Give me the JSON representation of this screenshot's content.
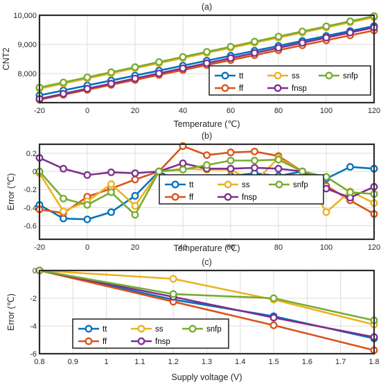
{
  "colors": {
    "tt": "#0072BD",
    "ff": "#D95319",
    "ss": "#EDB120",
    "fnsp": "#7E2F8E",
    "snfp": "#77AC30"
  },
  "legend_order": [
    "tt",
    "ss",
    "snfp",
    "ff",
    "fnsp"
  ],
  "chart_data": [
    {
      "type": "line",
      "title": "(a)",
      "xlabel": "Temperature (℃)",
      "ylabel": "CNT2",
      "xlim": [
        -20,
        120
      ],
      "ylim": [
        7000,
        10000
      ],
      "xticks": [
        -20,
        0,
        20,
        40,
        60,
        80,
        100,
        120
      ],
      "yticks": [
        8000,
        9000,
        10000
      ],
      "ytick_labels": [
        "8,000",
        "9,000",
        "10,000"
      ],
      "grid": true,
      "legend_position": "bottom-right",
      "x": [
        -20,
        -10,
        0,
        10,
        20,
        30,
        40,
        50,
        60,
        70,
        80,
        90,
        100,
        110,
        120
      ],
      "series": [
        {
          "name": "tt",
          "values": [
            7250,
            7420,
            7590,
            7760,
            7930,
            8100,
            8270,
            8440,
            8610,
            8780,
            8950,
            9120,
            9290,
            9460,
            9630
          ]
        },
        {
          "name": "ff",
          "values": [
            7100,
            7270,
            7440,
            7610,
            7780,
            7950,
            8120,
            8290,
            8460,
            8630,
            8800,
            8970,
            9140,
            9310,
            9480
          ]
        },
        {
          "name": "ss",
          "values": [
            7480,
            7655,
            7830,
            8005,
            8180,
            8355,
            8530,
            8705,
            8880,
            9055,
            9230,
            9405,
            9580,
            9755,
            9930
          ]
        },
        {
          "name": "fnsp",
          "values": [
            7130,
            7305,
            7480,
            7655,
            7830,
            8005,
            8180,
            8355,
            8530,
            8705,
            8880,
            9055,
            9230,
            9405,
            9580
          ]
        },
        {
          "name": "snfp",
          "values": [
            7520,
            7695,
            7870,
            8045,
            8220,
            8395,
            8570,
            8745,
            8920,
            9095,
            9270,
            9445,
            9620,
            9795,
            9970
          ]
        }
      ]
    },
    {
      "type": "line",
      "title": "(b)",
      "xlabel": "Temperature (℃)",
      "ylabel": "Error (℃)",
      "xlim": [
        -20,
        120
      ],
      "ylim": [
        -0.75,
        0.3
      ],
      "xticks": [
        -20,
        0,
        20,
        40,
        60,
        80,
        100,
        120
      ],
      "yticks": [
        -0.6,
        -0.4,
        -0.2,
        0,
        0.2
      ],
      "ytick_labels": [
        "-0.6",
        "-0.4",
        "-0.2",
        "0",
        "0.2"
      ],
      "grid": true,
      "legend_position": "bottom-center",
      "x": [
        -20,
        -10,
        0,
        10,
        20,
        30,
        40,
        50,
        60,
        70,
        80,
        90,
        100,
        110,
        120
      ],
      "series": [
        {
          "name": "tt",
          "values": [
            -0.37,
            -0.52,
            -0.53,
            -0.45,
            -0.27,
            0.0,
            -0.14,
            -0.08,
            -0.05,
            -0.02,
            -0.05,
            0.0,
            -0.08,
            0.05,
            0.03
          ]
        },
        {
          "name": "ff",
          "values": [
            -0.42,
            -0.46,
            -0.28,
            -0.19,
            -0.09,
            0.0,
            0.28,
            0.18,
            0.21,
            0.22,
            0.17,
            0.0,
            -0.16,
            -0.32,
            -0.47
          ]
        },
        {
          "name": "ss",
          "values": [
            -0.02,
            -0.44,
            -0.33,
            -0.14,
            -0.38,
            0.0,
            0.03,
            0.02,
            0.02,
            -0.12,
            0.15,
            0.0,
            -0.45,
            -0.22,
            -0.35
          ]
        },
        {
          "name": "fnsp",
          "values": [
            0.15,
            0.03,
            -0.04,
            -0.01,
            -0.02,
            0.0,
            0.09,
            0.03,
            0.03,
            0.04,
            0.03,
            0.0,
            -0.19,
            -0.29,
            -0.17
          ]
        },
        {
          "name": "snfp",
          "values": [
            0.0,
            -0.3,
            -0.37,
            -0.23,
            -0.48,
            0.0,
            0.02,
            0.07,
            0.12,
            0.12,
            0.13,
            0.0,
            -0.06,
            -0.23,
            -0.25
          ]
        }
      ]
    },
    {
      "type": "line",
      "title": "(c)",
      "xlabel": "Supply voltage (V)",
      "ylabel": "Error (℃)",
      "xlim": [
        0.8,
        1.8
      ],
      "ylim": [
        -6,
        0
      ],
      "xticks": [
        0.8,
        0.9,
        1.0,
        1.1,
        1.2,
        1.3,
        1.4,
        1.5,
        1.6,
        1.7,
        1.8
      ],
      "xtick_labels": [
        "0.8",
        "0.9",
        "1",
        "1.1",
        "1.2",
        "1.3",
        "1.4",
        "1.5",
        "1.6",
        "1.7",
        "1.8"
      ],
      "yticks": [
        -6,
        -4,
        -2,
        0
      ],
      "ytick_labels": [
        "-6",
        "-4",
        "-2",
        "0"
      ],
      "grid": true,
      "legend_position": "bottom-left",
      "x": [
        0.8,
        1.2,
        1.5,
        1.8
      ],
      "series": [
        {
          "name": "tt",
          "values": [
            0.0,
            -2.1,
            -3.3,
            -4.9
          ]
        },
        {
          "name": "ff",
          "values": [
            0.0,
            -2.25,
            -3.95,
            -5.75
          ]
        },
        {
          "name": "ss",
          "values": [
            0.0,
            -0.6,
            -2.1,
            -3.9
          ]
        },
        {
          "name": "fnsp",
          "values": [
            0.0,
            -1.9,
            -3.4,
            -4.8
          ]
        },
        {
          "name": "snfp",
          "values": [
            0.0,
            -1.7,
            -2.0,
            -3.6
          ]
        }
      ]
    }
  ]
}
